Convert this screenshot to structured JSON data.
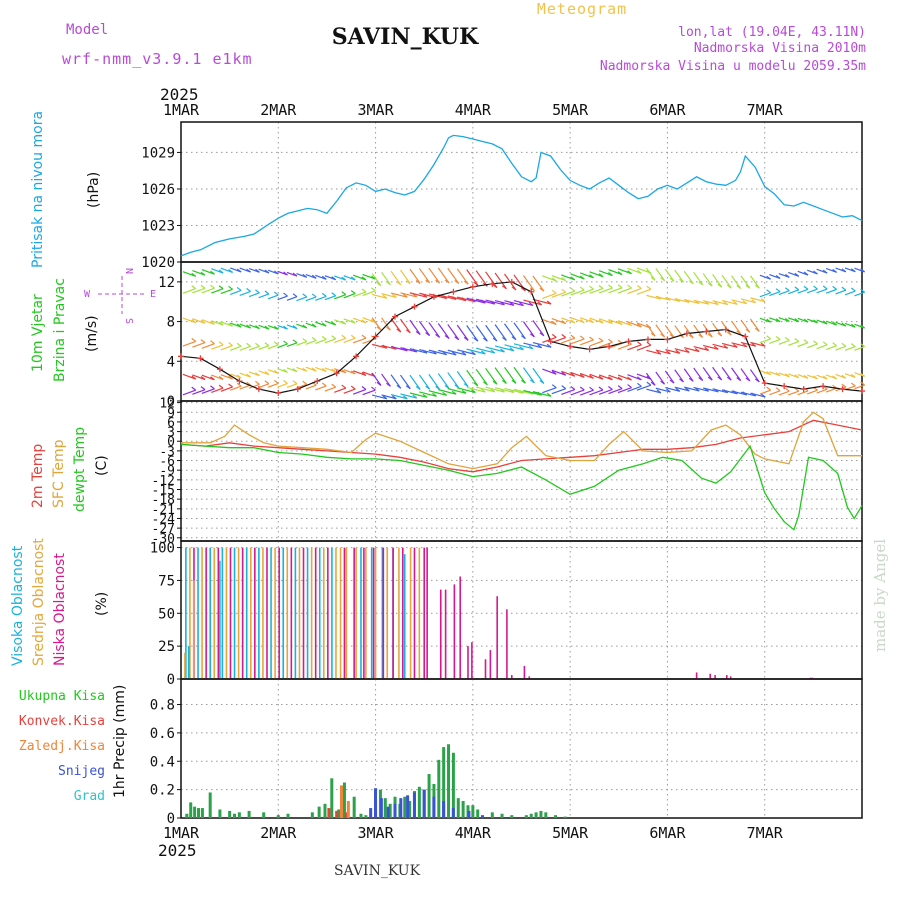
{
  "header": {
    "model_label": "Model",
    "model_name": "wrf-nmm_v3.9.1 e1km",
    "station": "SAVIN_KUK",
    "product": "Meteogram",
    "lonlat": "lon,lat (19.04E, 43.11N)",
    "elevation": "Nadmorska Visina 2010m",
    "model_elevation": "Nadmorska Visina u modelu 2059.35m",
    "year": "2025",
    "footer_station": "SAVIN_KUK",
    "credit": "made by Angel"
  },
  "colors": {
    "pressure": "#1aa7e6",
    "temp2m": "#e8413c",
    "sfc": "#e0a43a",
    "dewpt": "#22c81e",
    "high_cloud": "#1ab2dd",
    "mid_cloud": "#e6a63a",
    "low_cloud": "#d8178f",
    "total_precip": "#2ba24a",
    "conv_precip": "#e8413c",
    "frozen": "#f0843a",
    "snow": "#3a53d6",
    "graupel": "#2fc4c4",
    "wind_label": "#22c81e",
    "wind_axis": "#b84ad8",
    "credit": "#c8d9c8"
  },
  "chart_data": [
    {
      "type": "line",
      "id": "pressure",
      "ylabel_main": "Pritisak na nivou mora",
      "ylabel_unit": "(hPa)",
      "x_tick_labels": [
        "1MAR",
        "2MAR",
        "3MAR",
        "4MAR",
        "5MAR",
        "6MAR",
        "7MAR"
      ],
      "ylim": [
        1020,
        1031.5
      ],
      "yticks": [
        1020,
        1023,
        1026,
        1029
      ],
      "grid": true,
      "series": [
        {
          "x": [
            0,
            0.1,
            0.2,
            0.35,
            0.5,
            0.65,
            0.75,
            0.9,
            1.0,
            1.1,
            1.2,
            1.3,
            1.4,
            1.5,
            1.6,
            1.7,
            1.8,
            1.9,
            2.0,
            2.1,
            2.2,
            2.3,
            2.4,
            2.5,
            2.6,
            2.7,
            2.75,
            2.8,
            2.9,
            3.0,
            3.1,
            3.2,
            3.3,
            3.4,
            3.5,
            3.6,
            3.65,
            3.7,
            3.8,
            3.9,
            4.0,
            4.1,
            4.2,
            4.3,
            4.4,
            4.5,
            4.6,
            4.7,
            4.8,
            4.9,
            5.0,
            5.1,
            5.2,
            5.3,
            5.4,
            5.5,
            5.6,
            5.7,
            5.75,
            5.8,
            5.9,
            6.0,
            6.1,
            6.2,
            6.3,
            6.4,
            6.5,
            6.6,
            6.7,
            6.8,
            6.9,
            7.0
          ],
          "y": [
            1020.5,
            1020.8,
            1021.0,
            1021.6,
            1021.9,
            1022.1,
            1022.3,
            1023.1,
            1023.6,
            1024.0,
            1024.2,
            1024.4,
            1024.3,
            1024.0,
            1025.0,
            1026.1,
            1026.5,
            1026.3,
            1025.8,
            1026.0,
            1025.7,
            1025.5,
            1025.8,
            1026.8,
            1028.0,
            1029.4,
            1030.2,
            1030.4,
            1030.3,
            1030.1,
            1029.9,
            1029.7,
            1029.3,
            1028.1,
            1027.0,
            1026.6,
            1026.9,
            1029.0,
            1028.7,
            1027.6,
            1026.7,
            1026.3,
            1026.0,
            1026.5,
            1026.9,
            1026.3,
            1025.7,
            1025.2,
            1025.4,
            1026.0,
            1026.3,
            1026.0,
            1026.5,
            1027.0,
            1026.6,
            1026.4,
            1026.3,
            1026.7,
            1027.4,
            1028.7,
            1027.8,
            1026.2,
            1025.6,
            1024.7,
            1024.6,
            1024.9,
            1024.6,
            1024.3,
            1024.0,
            1023.7,
            1023.8,
            1023.4
          ]
        }
      ]
    },
    {
      "type": "line",
      "id": "wind",
      "ylabel_main": "10m Vjetar",
      "ylabel_sub": "Brzina i Pravac",
      "ylabel_unit": "(m/s)",
      "compass": {
        "n": "N",
        "e": "E",
        "w": "W",
        "s": "S"
      },
      "ylim": [
        0,
        14
      ],
      "yticks": [
        0,
        4,
        8,
        12
      ],
      "grid": true,
      "series": [
        {
          "name": "brzina",
          "x": [
            0,
            0.2,
            0.4,
            0.6,
            0.8,
            1.0,
            1.2,
            1.4,
            1.6,
            1.8,
            2.0,
            2.2,
            2.4,
            2.6,
            2.8,
            3.0,
            3.2,
            3.4,
            3.6,
            3.8,
            4.0,
            4.2,
            4.4,
            4.6,
            4.8,
            5.0,
            5.2,
            5.4,
            5.6,
            5.8,
            6.0,
            6.2,
            6.4,
            6.6,
            6.8,
            7.0
          ],
          "y": [
            4.5,
            4.3,
            3.2,
            2.0,
            1.2,
            0.8,
            1.2,
            2.0,
            2.8,
            4.5,
            6.5,
            8.5,
            9.5,
            10.5,
            11.0,
            11.5,
            11.8,
            12.0,
            11.0,
            6.0,
            5.5,
            5.2,
            5.5,
            6.0,
            6.2,
            6.2,
            6.8,
            7.0,
            7.2,
            6.5,
            1.8,
            1.5,
            1.2,
            1.5,
            1.2,
            1.0
          ]
        }
      ]
    },
    {
      "type": "line",
      "id": "temperature",
      "ylabel_lines": [
        "2m Temp",
        "SFC Temp",
        "dewpt Temp"
      ],
      "ylabel_unit": "(C)",
      "ylim": [
        -31,
        12.5
      ],
      "yticks": [
        12,
        9,
        6,
        3,
        0,
        -3,
        -6,
        -9,
        -12,
        -15,
        -18,
        -21,
        -24,
        -27,
        -30
      ],
      "grid": true,
      "series": [
        {
          "name": "2m Temp",
          "x": [
            0,
            0.25,
            0.5,
            0.75,
            1.0,
            1.25,
            1.5,
            1.75,
            2.0,
            2.25,
            2.5,
            2.75,
            3.0,
            3.25,
            3.5,
            3.75,
            4.0,
            4.25,
            4.5,
            4.75,
            5.0,
            5.25,
            5.5,
            5.75,
            6.0,
            6.25,
            6.5,
            6.75,
            7.0
          ],
          "y": [
            -1.0,
            -1.5,
            -0.5,
            -1.5,
            -2.0,
            -2.5,
            -3.0,
            -3.5,
            -4.0,
            -5.0,
            -6.5,
            -8.5,
            -9.5,
            -8.0,
            -6.0,
            -5.5,
            -5.0,
            -4.5,
            -3.5,
            -2.5,
            -2.5,
            -2.0,
            -1.0,
            1.0,
            2.0,
            3.0,
            6.5,
            5.0,
            3.5
          ]
        },
        {
          "name": "SFC Temp",
          "x": [
            0,
            0.15,
            0.3,
            0.45,
            0.55,
            0.7,
            0.85,
            1.0,
            1.25,
            1.5,
            1.75,
            1.9,
            2.0,
            2.25,
            2.5,
            2.75,
            3.0,
            3.25,
            3.4,
            3.55,
            3.75,
            4.0,
            4.25,
            4.4,
            4.55,
            4.75,
            5.0,
            5.25,
            5.45,
            5.6,
            5.75,
            5.9,
            6.0,
            6.25,
            6.4,
            6.5,
            6.6,
            6.75,
            7.0
          ],
          "y": [
            -0.5,
            -0.5,
            -0.5,
            1.5,
            5.0,
            2.0,
            -0.5,
            -1.5,
            -2.0,
            -2.5,
            -3.5,
            0.5,
            2.5,
            0.0,
            -3.5,
            -7.0,
            -8.5,
            -7.0,
            -2.0,
            1.5,
            -4.5,
            -6.0,
            -6.0,
            -1.0,
            3.0,
            -3.0,
            -3.5,
            -3.0,
            3.5,
            5.0,
            2.0,
            -4.0,
            -5.5,
            -7.0,
            6.0,
            9.0,
            7.0,
            -4.5,
            -4.5
          ]
        },
        {
          "name": "dewpt Temp",
          "x": [
            0,
            0.25,
            0.5,
            0.75,
            1.0,
            1.25,
            1.5,
            1.75,
            2.0,
            2.25,
            2.5,
            2.75,
            3.0,
            3.25,
            3.5,
            3.75,
            4.0,
            4.25,
            4.5,
            4.75,
            4.95,
            5.15,
            5.35,
            5.5,
            5.65,
            5.85,
            6.0,
            6.1,
            6.2,
            6.3,
            6.35,
            6.45,
            6.6,
            6.75,
            6.85,
            6.92,
            7.0
          ],
          "y": [
            -1.0,
            -1.5,
            -2.0,
            -2.0,
            -3.5,
            -4.0,
            -5.0,
            -5.5,
            -5.5,
            -6.0,
            -7.5,
            -9.0,
            -11.0,
            -10.0,
            -8.0,
            -12.0,
            -16.5,
            -14.0,
            -9.0,
            -7.0,
            -5.0,
            -6.0,
            -11.5,
            -13.0,
            -9.5,
            -1.5,
            -16.0,
            -21.0,
            -25.0,
            -27.5,
            -23.0,
            -5.0,
            -6.0,
            -10.0,
            -20.5,
            -24.0,
            -20.0
          ]
        }
      ]
    },
    {
      "type": "bar",
      "id": "clouds",
      "ylabel_lines": [
        "Visoka Oblacnost",
        "Srednja Oblacnost",
        "Niska Oblacnost"
      ],
      "ylabel_unit": "(%)",
      "ylim": [
        0,
        105
      ],
      "yticks": [
        0,
        25,
        50,
        75,
        100
      ],
      "grid": true,
      "dense_overcast": {
        "start": 0.05,
        "end": 1.6,
        "step": 0.0417
      },
      "series": [
        {
          "name": "Visoka Oblacnost",
          "x": [
            0.08,
            0.4,
            1.85,
            1.96,
            2.07,
            2.18,
            2.3
          ],
          "y": [
            25,
            90,
            100,
            100,
            100,
            100,
            95
          ]
        },
        {
          "name": "Srednja Oblacnost",
          "x": [
            0.04,
            0.13,
            1.64,
            1.7,
            1.8,
            1.9,
            2.0,
            2.12,
            2.24,
            2.36,
            2.45
          ],
          "y": [
            20,
            75,
            100,
            100,
            100,
            100,
            100,
            100,
            100,
            100,
            100
          ]
        },
        {
          "name": "Niska Oblacnost",
          "x": [
            1.68,
            1.78,
            1.88,
            1.98,
            2.08,
            2.18,
            2.28,
            2.4,
            2.5,
            2.53,
            2.67,
            2.72,
            2.81,
            2.87,
            2.95,
            2.99,
            3.13,
            3.18,
            3.25,
            3.35,
            3.4,
            3.53,
            3.58,
            5.3,
            5.44,
            5.49,
            5.61,
            5.65,
            6.47,
            6.49
          ],
          "y": [
            100,
            100,
            100,
            100,
            100,
            100,
            100,
            100,
            100,
            100,
            68,
            68,
            72,
            78,
            25,
            28,
            15,
            22,
            63,
            53,
            3,
            10,
            2,
            5,
            4,
            3,
            3,
            2,
            1,
            1
          ]
        }
      ]
    },
    {
      "type": "bar",
      "id": "precip",
      "ylabel_main": "1hr Precip (mm)",
      "legend": [
        "Ukupna Kisa",
        "Konvek.Kisa",
        "Zaledj.Kisa",
        "Snijeg",
        "Grad"
      ],
      "ylim": [
        0,
        0.98
      ],
      "yticks": [
        0,
        0.2,
        0.4,
        0.6,
        0.8
      ],
      "grid": true,
      "x_tick_labels": [
        "1MAR",
        "2MAR",
        "3MAR",
        "4MAR",
        "5MAR",
        "6MAR",
        "7MAR"
      ],
      "series": [
        {
          "name": "Ukupna Kisa",
          "x": [
            0.06,
            0.1,
            0.14,
            0.18,
            0.22,
            0.3,
            0.4,
            0.5,
            0.55,
            0.6,
            0.7,
            0.85,
            1.0,
            1.1,
            1.35,
            1.42,
            1.48,
            1.55,
            1.62,
            1.68,
            1.78,
            1.85,
            1.9,
            2.0,
            2.05,
            2.1,
            2.15,
            2.2,
            2.25,
            2.3,
            2.35,
            2.4,
            2.45,
            2.5,
            2.55,
            2.6,
            2.65,
            2.7,
            2.75,
            2.8,
            2.85,
            2.9,
            2.95,
            3.0,
            3.05,
            3.2,
            3.3,
            3.4,
            3.55,
            3.6,
            3.65,
            3.7,
            3.75,
            3.85,
            3.95
          ],
          "y": [
            0.03,
            0.11,
            0.08,
            0.07,
            0.07,
            0.18,
            0.06,
            0.05,
            0.03,
            0.04,
            0.05,
            0.04,
            0.02,
            0.03,
            0.04,
            0.08,
            0.1,
            0.28,
            0.06,
            0.25,
            0.15,
            0.03,
            0.02,
            0.06,
            0.2,
            0.14,
            0.1,
            0.15,
            0.1,
            0.15,
            0.12,
            0.19,
            0.22,
            0.2,
            0.31,
            0.24,
            0.41,
            0.5,
            0.52,
            0.46,
            0.14,
            0.12,
            0.09,
            0.09,
            0.06,
            0.04,
            0.03,
            0.02,
            0.02,
            0.03,
            0.04,
            0.05,
            0.04,
            0.02,
            0.01
          ]
        },
        {
          "name": "Konvek.Kisa",
          "x": [
            1.52,
            1.6,
            1.7
          ],
          "y": [
            0.07,
            0.05,
            0.04
          ]
        },
        {
          "name": "Zaledj.Kisa",
          "x": [
            1.65,
            1.72
          ],
          "y": [
            0.23,
            0.12
          ]
        },
        {
          "name": "Snijeg",
          "x": [
            1.97,
            2.02,
            2.08,
            2.15,
            2.22,
            2.28,
            2.35,
            2.42,
            2.52,
            2.62,
            2.72,
            2.82,
            2.98,
            3.12
          ],
          "y": [
            0.07,
            0.21,
            0.14,
            0.08,
            0.1,
            0.14,
            0.16,
            0.18,
            0.2,
            0.15,
            0.12,
            0.07,
            0.05,
            0.02
          ]
        },
        {
          "name": "Grad",
          "x": [],
          "y": []
        }
      ]
    }
  ]
}
